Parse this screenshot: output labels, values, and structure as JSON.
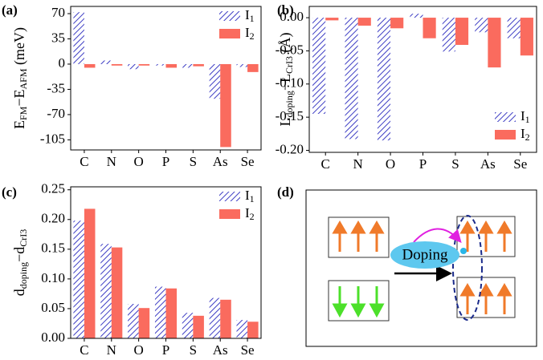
{
  "chart_data": [
    {
      "type": "bar",
      "label": "(a)",
      "ylabel": [
        {
          "text": "E"
        },
        {
          "text": "FM",
          "sub": true
        },
        {
          "text": "−E"
        },
        {
          "text": "AFM",
          "sub": true
        },
        {
          "text": " (meV)"
        }
      ],
      "categories": [
        "C",
        "N",
        "O",
        "P",
        "S",
        "As",
        "Se"
      ],
      "series": [
        {
          "name": "I1",
          "color": "#3d3dc4",
          "hatch": true,
          "values": [
            72,
            5,
            -7,
            -2,
            -5,
            -48,
            -4
          ]
        },
        {
          "name": "I2",
          "color": "#fa6b5e",
          "hatch": false,
          "values": [
            -5,
            -2,
            -2,
            -5,
            -3,
            -115,
            -11
          ]
        }
      ],
      "ylim": [
        -119,
        80
      ],
      "yticks": [
        70,
        35,
        0,
        -35,
        -70,
        -105
      ],
      "legend": "upper right"
    },
    {
      "type": "bar",
      "label": "(b)",
      "ylabel": [
        {
          "text": "L"
        },
        {
          "text": "doping",
          "sub": true
        },
        {
          "text": "−L"
        },
        {
          "text": "CrI3",
          "sub": true
        },
        {
          "text": " (Å)"
        }
      ],
      "categories": [
        "C",
        "N",
        "O",
        "P",
        "S",
        "As",
        "Se"
      ],
      "series": [
        {
          "name": "I1",
          "color": "#3d3dc4",
          "hatch": true,
          "values": [
            -0.145,
            -0.183,
            -0.185,
            0.006,
            -0.051,
            -0.022,
            -0.031
          ]
        },
        {
          "name": "I2",
          "color": "#fa6b5e",
          "hatch": false,
          "values": [
            -0.004,
            -0.012,
            -0.016,
            -0.031,
            -0.041,
            -0.075,
            -0.057
          ]
        }
      ],
      "ylim": [
        -0.203,
        0.017
      ],
      "yticks": [
        {
          "value": 0,
          "label": "0.00"
        },
        {
          "value": -0.05,
          "label": "-0.05"
        },
        {
          "value": -0.1,
          "label": "-0.10"
        },
        {
          "value": -0.15,
          "label": "-0.15"
        },
        {
          "value": -0.2,
          "label": "-0.20"
        }
      ],
      "legend": "lower right"
    },
    {
      "type": "bar",
      "label": "(c)",
      "ylabel": [
        {
          "text": "d"
        },
        {
          "text": "doping",
          "sub": true
        },
        {
          "text": "−d"
        },
        {
          "text": "CrI3",
          "sub": true
        }
      ],
      "categories": [
        "C",
        "N",
        "O",
        "P",
        "S",
        "As",
        "Se"
      ],
      "series": [
        {
          "name": "I1",
          "color": "#3d3dc4",
          "hatch": true,
          "values": [
            0.198,
            0.159,
            0.058,
            0.087,
            0.043,
            0.068,
            0.031
          ]
        },
        {
          "name": "I2",
          "color": "#fa6b5e",
          "hatch": false,
          "values": [
            0.218,
            0.153,
            0.051,
            0.084,
            0.038,
            0.065,
            0.028
          ]
        }
      ],
      "ylim": [
        0,
        0.255
      ],
      "yticks": [
        {
          "value": 0,
          "label": "0.00"
        },
        {
          "value": 0.05,
          "label": "0.05"
        },
        {
          "value": 0.1,
          "label": "0.10"
        },
        {
          "value": 0.15,
          "label": "0.15"
        },
        {
          "value": 0.2,
          "label": "0.20"
        },
        {
          "value": 0.25,
          "label": "0.25"
        }
      ],
      "legend": "upper right"
    }
  ],
  "diagram": {
    "label": "(d)",
    "text": "Doping"
  }
}
